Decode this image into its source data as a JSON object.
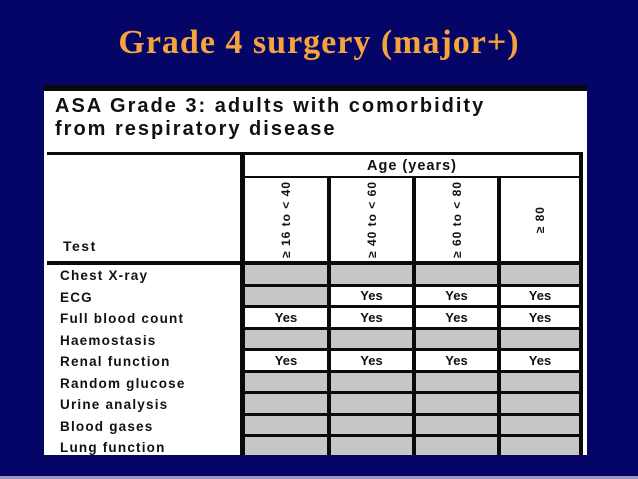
{
  "slide": {
    "title": "Grade 4 surgery (major+)",
    "colors": {
      "background": "#050568",
      "title_text": "#F5A33C",
      "cell_gray": "#C6C6C6",
      "bottom_strip": "#9898C4",
      "table_ink": "#0a0a0a"
    }
  },
  "scan": {
    "heading_line1": "ASA Grade 3: adults with comorbidity",
    "heading_line2": "from respiratory disease",
    "table": {
      "corner_label": "Test",
      "age_header": "Age (years)",
      "age_columns": [
        "≥ 16 to < 40",
        "≥ 40 to < 60",
        "≥ 60 to < 80",
        "≥ 80"
      ],
      "yes_label": "Yes",
      "rows": [
        {
          "label": "Chest X-ray",
          "values": [
            "",
            "",
            "",
            ""
          ]
        },
        {
          "label": "ECG",
          "values": [
            "",
            "Yes",
            "Yes",
            "Yes"
          ]
        },
        {
          "label": "Full blood count",
          "values": [
            "Yes",
            "Yes",
            "Yes",
            "Yes"
          ]
        },
        {
          "label": "Haemostasis",
          "values": [
            "",
            "",
            "",
            ""
          ]
        },
        {
          "label": "Renal function",
          "values": [
            "Yes",
            "Yes",
            "Yes",
            "Yes"
          ]
        },
        {
          "label": "Random glucose",
          "values": [
            "",
            "",
            "",
            ""
          ]
        },
        {
          "label": "Urine analysis",
          "values": [
            "",
            "",
            "",
            ""
          ]
        },
        {
          "label": "Blood gases",
          "values": [
            "",
            "",
            "",
            ""
          ]
        },
        {
          "label": "Lung function",
          "values": [
            "",
            "",
            "",
            ""
          ]
        }
      ]
    }
  }
}
